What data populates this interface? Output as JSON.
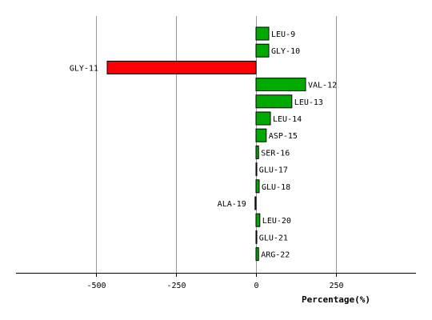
{
  "chart_data": {
    "type": "bar",
    "orientation": "horizontal",
    "xlabel": "Percentage(%)",
    "xlim": [
      -750,
      500
    ],
    "xticks": [
      -500,
      -250,
      0,
      250
    ],
    "xtick_labels": [
      "-500",
      "-250",
      "0",
      "250"
    ],
    "grid": true,
    "categories": [
      "LEU-9",
      "GLY-10",
      "GLY-11",
      "VAL-12",
      "LEU-13",
      "LEU-14",
      "ASP-15",
      "SER-16",
      "GLU-17",
      "GLU-18",
      "ALA-19",
      "LEU-20",
      "GLU-21",
      "ARG-22"
    ],
    "values": [
      40,
      40,
      -465,
      155,
      112,
      45,
      32,
      8,
      2,
      10,
      -3,
      12,
      2,
      8
    ],
    "colors": {
      "positive": "#00aa00",
      "negative": "#ff0000",
      "grid": "#999999",
      "axis": "#000000"
    }
  }
}
